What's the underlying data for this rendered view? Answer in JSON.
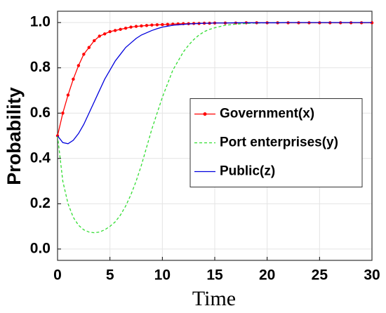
{
  "chart_data": {
    "type": "line",
    "x_label": "Time",
    "y_label": "Probability",
    "x": [
      0,
      0.5,
      1,
      1.5,
      2,
      2.5,
      3,
      3.5,
      4,
      4.5,
      5,
      5.5,
      6,
      6.5,
      7,
      7.5,
      8,
      8.5,
      9,
      9.5,
      10,
      10.5,
      11,
      11.5,
      12,
      12.5,
      13,
      13.5,
      14,
      14.5,
      15,
      16,
      17,
      18,
      19,
      20,
      21,
      22,
      23,
      24,
      25,
      26,
      27,
      28,
      29,
      30
    ],
    "series": [
      {
        "name": "Government(x)",
        "color": "#ff0000",
        "line_style": "solid",
        "marker": "dot",
        "values": [
          0.5,
          0.6,
          0.68,
          0.75,
          0.81,
          0.86,
          0.89,
          0.92,
          0.94,
          0.95,
          0.96,
          0.965,
          0.97,
          0.975,
          0.98,
          0.983,
          0.985,
          0.987,
          0.989,
          0.99,
          0.991,
          0.992,
          0.993,
          0.994,
          0.995,
          0.995,
          0.996,
          0.996,
          0.997,
          0.997,
          0.998,
          0.998,
          0.998,
          0.999,
          0.999,
          0.999,
          0.999,
          0.999,
          0.999,
          0.999,
          0.999,
          0.999,
          0.999,
          0.999,
          0.999,
          0.999
        ]
      },
      {
        "name": "Port enterprises(y)",
        "color": "#33dd33",
        "line_style": "dashed",
        "marker": "none",
        "values": [
          0.5,
          0.3,
          0.2,
          0.14,
          0.105,
          0.085,
          0.075,
          0.072,
          0.075,
          0.085,
          0.1,
          0.12,
          0.15,
          0.19,
          0.24,
          0.3,
          0.37,
          0.45,
          0.53,
          0.6,
          0.67,
          0.73,
          0.79,
          0.83,
          0.87,
          0.9,
          0.925,
          0.945,
          0.96,
          0.97,
          0.977,
          0.988,
          0.993,
          0.996,
          0.998,
          0.999,
          1,
          1,
          1,
          1,
          1,
          1,
          1,
          1,
          1,
          1
        ]
      },
      {
        "name": "Public(z)",
        "color": "#0000dd",
        "line_style": "solid",
        "marker": "none",
        "values": [
          0.5,
          0.47,
          0.465,
          0.48,
          0.51,
          0.55,
          0.6,
          0.65,
          0.7,
          0.75,
          0.79,
          0.83,
          0.86,
          0.89,
          0.91,
          0.93,
          0.945,
          0.955,
          0.965,
          0.973,
          0.98,
          0.984,
          0.988,
          0.99,
          0.992,
          0.994,
          0.995,
          0.996,
          0.997,
          0.997,
          0.998,
          0.998,
          0.999,
          0.999,
          0.999,
          0.999,
          0.999,
          1,
          1,
          1,
          1,
          1,
          1,
          1,
          1,
          1
        ]
      }
    ],
    "xlim": [
      0,
      30
    ],
    "xticks": [
      0,
      5,
      10,
      15,
      20,
      25,
      30
    ],
    "ylim": [
      -0.05,
      1.05
    ],
    "yticks": [
      {
        "value": 0,
        "label": "0.0"
      },
      0.2,
      0.4,
      0.6,
      0.8,
      {
        "value": 1,
        "label": "1.0"
      }
    ],
    "grid": true,
    "legend": "east"
  }
}
